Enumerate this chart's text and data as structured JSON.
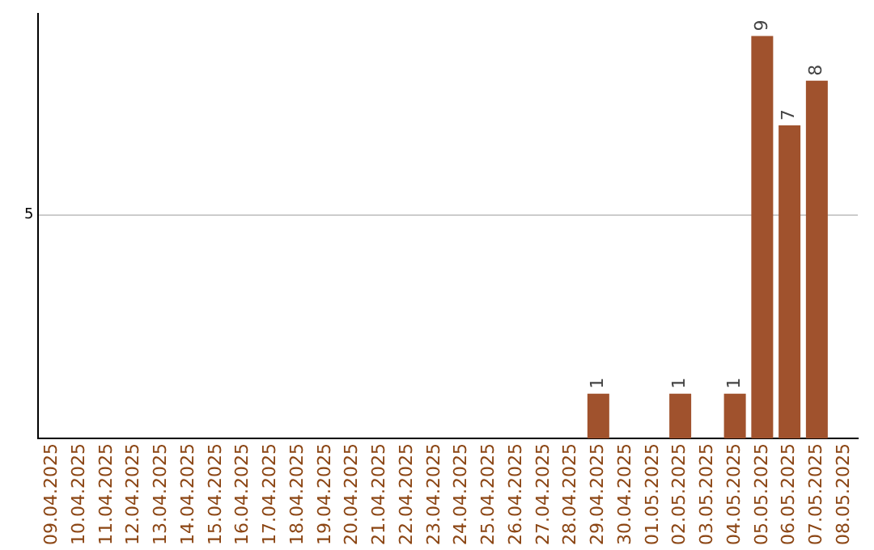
{
  "chart_data": {
    "type": "bar",
    "categories": [
      "09.04.2025",
      "10.04.2025",
      "11.04.2025",
      "12.04.2025",
      "13.04.2025",
      "14.04.2025",
      "15.04.2025",
      "16.04.2025",
      "17.04.2025",
      "18.04.2025",
      "19.04.2025",
      "20.04.2025",
      "21.04.2025",
      "22.04.2025",
      "23.04.2025",
      "24.04.2025",
      "25.04.2025",
      "26.04.2025",
      "27.04.2025",
      "28.04.2025",
      "29.04.2025",
      "30.04.2025",
      "01.05.2025",
      "02.05.2025",
      "03.05.2025",
      "04.05.2025",
      "05.05.2025",
      "06.05.2025",
      "07.05.2025",
      "08.05.2025"
    ],
    "values": [
      null,
      null,
      null,
      null,
      null,
      null,
      null,
      null,
      null,
      null,
      null,
      null,
      null,
      null,
      null,
      null,
      null,
      null,
      null,
      null,
      1,
      null,
      null,
      1,
      null,
      1,
      9,
      7,
      8,
      null
    ],
    "data_labels": true,
    "color": "#a0522d",
    "ylim": [
      0,
      9.5
    ],
    "yticks": [
      5
    ],
    "grid": "y",
    "legend": false
  }
}
